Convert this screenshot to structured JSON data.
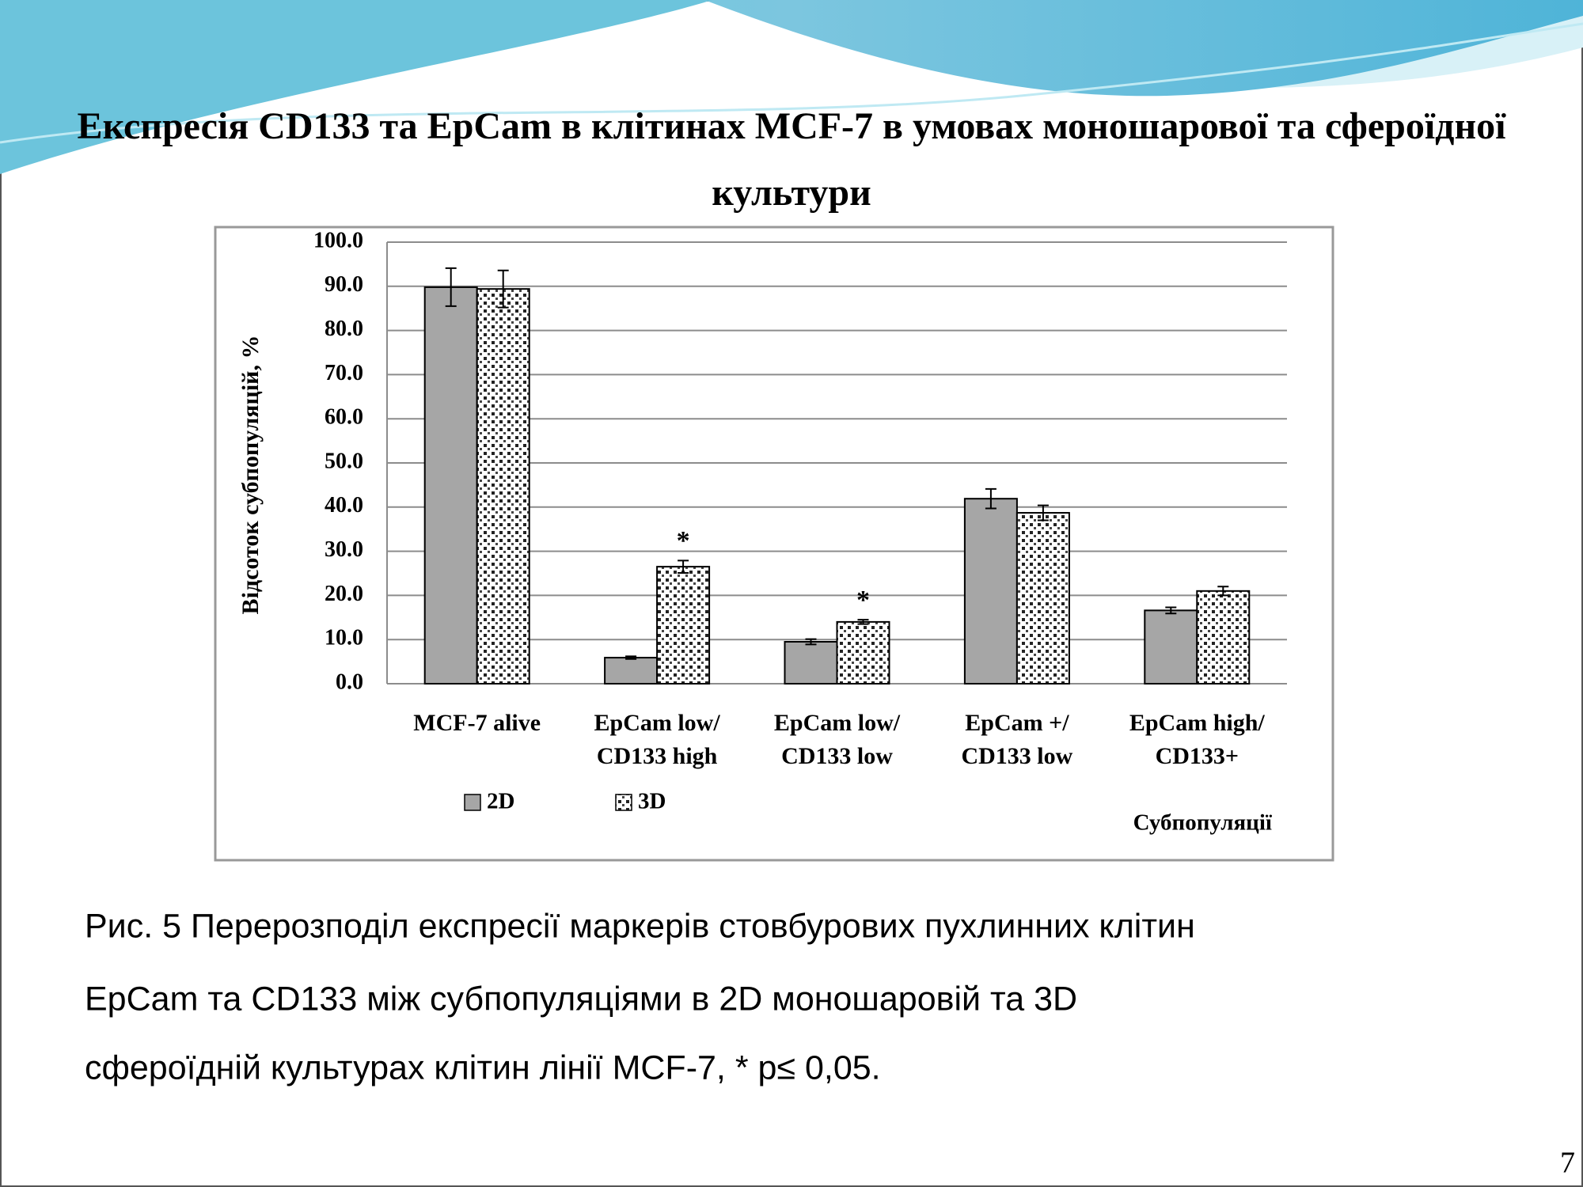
{
  "title": "Експресія CD133 та EpCam в клітинах MCF-7 в умовах моношарової та сфероїдної культури",
  "chart_data": {
    "type": "bar",
    "x_label": "Субпопуляції",
    "y_label": "Відсоток субпопуляцій, %",
    "categories": [
      "MCF-7 alive",
      "EpCam low/ CD133 high",
      "EpCam low/ CD133 low",
      "EpCam +/ CD133 low",
      "EpCam high/ CD133+"
    ],
    "series": [
      {
        "name": "2D",
        "color": "#a6a6a6",
        "values": [
          89.8,
          5.9,
          9.5,
          41.9,
          16.6
        ],
        "errors": [
          4.3,
          0.3,
          0.6,
          2.2,
          0.7
        ]
      },
      {
        "name": "3D",
        "color": "#ffffff",
        "pattern": "dots",
        "values": [
          89.4,
          26.5,
          14.0,
          38.7,
          21.0
        ],
        "errors": [
          4.2,
          1.4,
          0.5,
          1.7,
          1.0
        ]
      }
    ],
    "annotations": [
      {
        "text": "*",
        "series": 1,
        "category": 1
      },
      {
        "text": "*",
        "series": 1,
        "category": 2
      }
    ],
    "ylim": [
      0,
      100
    ],
    "yticks": [
      {
        "value": 0,
        "label": "0.0"
      },
      {
        "value": 10,
        "label": "10.0"
      },
      {
        "value": 20,
        "label": "20.0"
      },
      {
        "value": 30,
        "label": "30.0"
      },
      {
        "value": 40,
        "label": "40.0"
      },
      {
        "value": 50,
        "label": "50.0"
      },
      {
        "value": 60,
        "label": "60.0"
      },
      {
        "value": 70,
        "label": "70.0"
      },
      {
        "value": 80,
        "label": "80.0"
      },
      {
        "value": 90,
        "label": "90.0"
      },
      {
        "value": 100,
        "label": "100.0"
      }
    ],
    "grid": true,
    "legend": "bottom-left"
  },
  "caption": [
    "Рис. 5 Перерозподіл  експресії маркерів стовбурових пухлинних клітин",
    "EpCam та CD133 між субпопуляціями в 2D моношаровій та 3D",
    "сфероїдній культурах клітин лінії MCF-7, * p≤ 0,05."
  ],
  "page_number": "7"
}
